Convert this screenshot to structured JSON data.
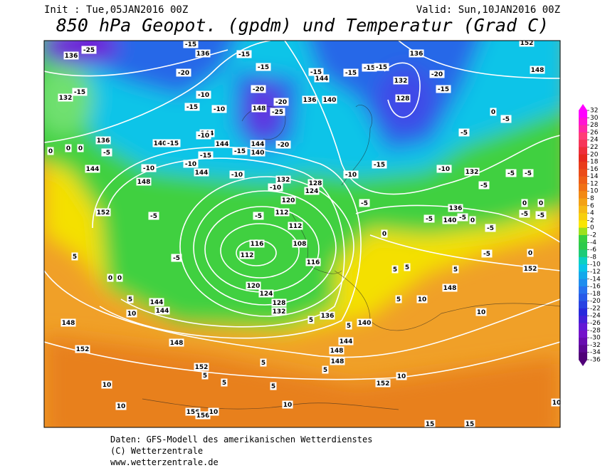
{
  "header": {
    "init": "Init : Tue,05JAN2016 00Z",
    "valid": "Valid: Sun,10JAN2016 00Z",
    "title": "850 hPa Geopot. (gpdm) und Temperatur (Grad C)"
  },
  "map": {
    "contour_labels": [
      "136",
      "136",
      "136",
      "132",
      "132",
      "128",
      "148",
      "144",
      "144",
      "144",
      "140",
      "140",
      "136",
      "144",
      "148",
      "152",
      "136",
      "140",
      "144",
      "148",
      "152",
      "132",
      "128",
      "124",
      "120",
      "112",
      "112",
      "116",
      "112",
      "108",
      "116",
      "120",
      "124",
      "128",
      "132",
      "136",
      "140",
      "144",
      "148",
      "148",
      "144",
      "144",
      "148",
      "148",
      "152",
      "152",
      "152",
      "156",
      "156",
      "152",
      "148",
      "136",
      "140",
      "132",
      "144",
      "-25",
      "-15",
      "-20",
      "-15",
      "-15",
      "-10",
      "-15",
      "-10",
      "-20",
      "-20",
      "-25",
      "-20",
      "-15",
      "-15",
      "-10",
      "-15",
      "-10",
      "-10",
      "-10",
      "-10",
      "-5",
      "-5",
      "-5",
      "-10",
      "-15",
      "-5",
      "-10",
      "-5",
      "-5",
      "-5",
      "-5",
      "0",
      "-5",
      "-15",
      "-20",
      "-15",
      "-15",
      "-15",
      "-15",
      "-15",
      "0",
      "0",
      "0",
      "-5",
      "0",
      "0",
      "-5",
      "-5",
      "0",
      "0",
      "-5",
      "-5",
      "0",
      "-5",
      "-5",
      "0",
      "0",
      "5",
      "5",
      "10",
      "5",
      "5",
      "5",
      "10",
      "5",
      "10",
      "5",
      "5",
      "5",
      "5",
      "10",
      "10",
      "10",
      "10",
      "10",
      "5",
      "15",
      "15",
      "5",
      "5",
      "10"
    ]
  },
  "legend": {
    "labels": [
      32,
      30,
      28,
      26,
      24,
      22,
      20,
      18,
      16,
      14,
      12,
      10,
      8,
      6,
      4,
      2,
      0,
      -2,
      -4,
      -6,
      -8,
      -10,
      -12,
      -14,
      -16,
      -18,
      -20,
      -22,
      -24,
      -26,
      -28,
      -30,
      -32,
      -34,
      -36
    ]
  },
  "footer": {
    "lines": [
      "Daten: GFS-Modell des amerikanischen Wetterdienstes",
      "(C) Wetterzentrale",
      "www.wetterzentrale.de"
    ]
  }
}
